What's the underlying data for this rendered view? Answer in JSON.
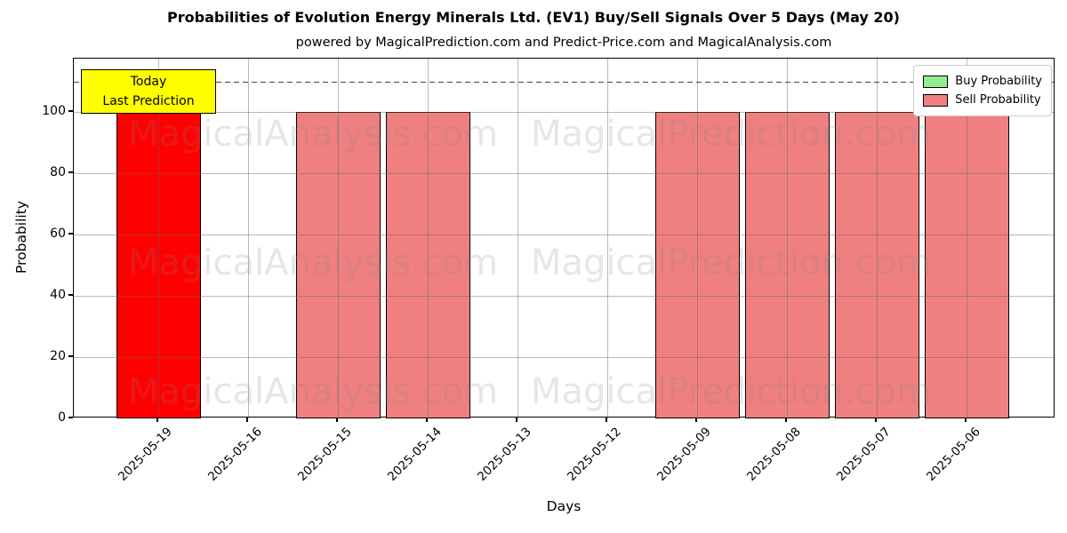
{
  "header": {
    "title": "Probabilities of Evolution Energy Minerals Ltd. (EV1) Buy/Sell Signals Over 5 Days (May 20)",
    "subtitle": "powered by MagicalPrediction.com and Predict-Price.com and MagicalAnalysis.com"
  },
  "annotation": {
    "line1": "Today",
    "line2": "Last Prediction",
    "bg_color": "#ffff00"
  },
  "legend": [
    {
      "label": "Buy Probability",
      "color": "#90ee90"
    },
    {
      "label": "Sell Probability",
      "color": "#f08080"
    }
  ],
  "watermark": {
    "left_text": "MagicalAnalysis.com",
    "right_text": "MagicalPrediction.com",
    "rows": 3
  },
  "chart_data": {
    "type": "bar",
    "title": "Probabilities of Evolution Energy Minerals Ltd. (EV1) Buy/Sell Signals Over 5 Days (May 20)",
    "xlabel": "Days",
    "ylabel": "Probability",
    "categories": [
      "2025-05-19",
      "2025-05-16",
      "2025-05-15",
      "2025-05-14",
      "2025-05-13",
      "2025-05-12",
      "2025-05-09",
      "2025-05-08",
      "2025-05-07",
      "2025-05-06"
    ],
    "series": [
      {
        "name": "Buy Probability",
        "color": "#90ee90",
        "values": [
          0,
          0,
          0,
          0,
          0,
          0,
          0,
          0,
          0,
          0
        ]
      },
      {
        "name": "Sell Probability",
        "color": "#f08080",
        "values": [
          100,
          0,
          100,
          100,
          0,
          0,
          100,
          100,
          100,
          100
        ]
      }
    ],
    "highlight": {
      "index": 0,
      "color": "#ff0000",
      "note": "Today / Last Prediction"
    },
    "yticks": [
      0,
      20,
      40,
      60,
      80,
      100
    ],
    "ylim": [
      0,
      117.4
    ],
    "reference_line": {
      "y": 110,
      "style": "dashed",
      "color": "#444444"
    },
    "grid": true,
    "legend_position": "upper right",
    "bar_width_ratio": 0.94
  }
}
